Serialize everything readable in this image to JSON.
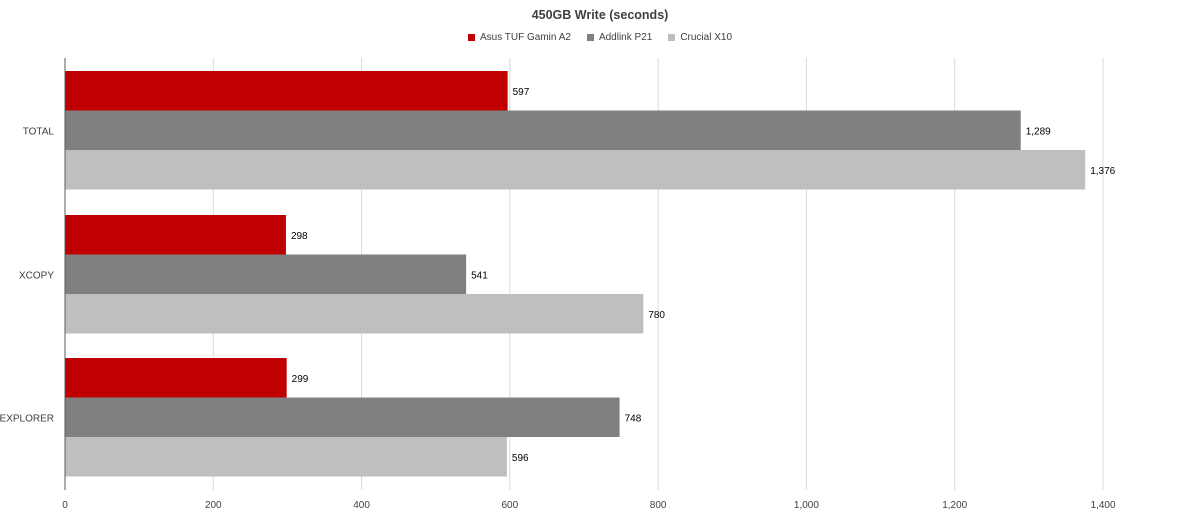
{
  "chart_data": {
    "type": "bar",
    "orientation": "horizontal",
    "title": "450GB Write (seconds)",
    "xlabel": "",
    "ylabel": "",
    "categories": [
      "TOTAL",
      "XCOPY",
      "EXPLORER"
    ],
    "series": [
      {
        "name": "Asus TUF Gamin A2",
        "color": "#c00000",
        "values": [
          597,
          298,
          299
        ],
        "labels": [
          "597",
          "298",
          "299"
        ]
      },
      {
        "name": "Addlink P21",
        "color": "#808080",
        "values": [
          1289,
          541,
          748
        ],
        "labels": [
          "1,289",
          "541",
          "748"
        ]
      },
      {
        "name": "Crucial X10",
        "color": "#bfbfbf",
        "values": [
          1376,
          780,
          596
        ],
        "labels": [
          "1,376",
          "780",
          "596"
        ]
      }
    ],
    "xlim": [
      0,
      1400
    ],
    "ticks": [
      0,
      200,
      400,
      600,
      800,
      1000,
      1200,
      1400
    ],
    "tick_labels": [
      "0",
      "200",
      "400",
      "600",
      "800",
      "1,000",
      "1,200",
      "1,400"
    ],
    "grid": "vertical",
    "legend_position": "top"
  }
}
